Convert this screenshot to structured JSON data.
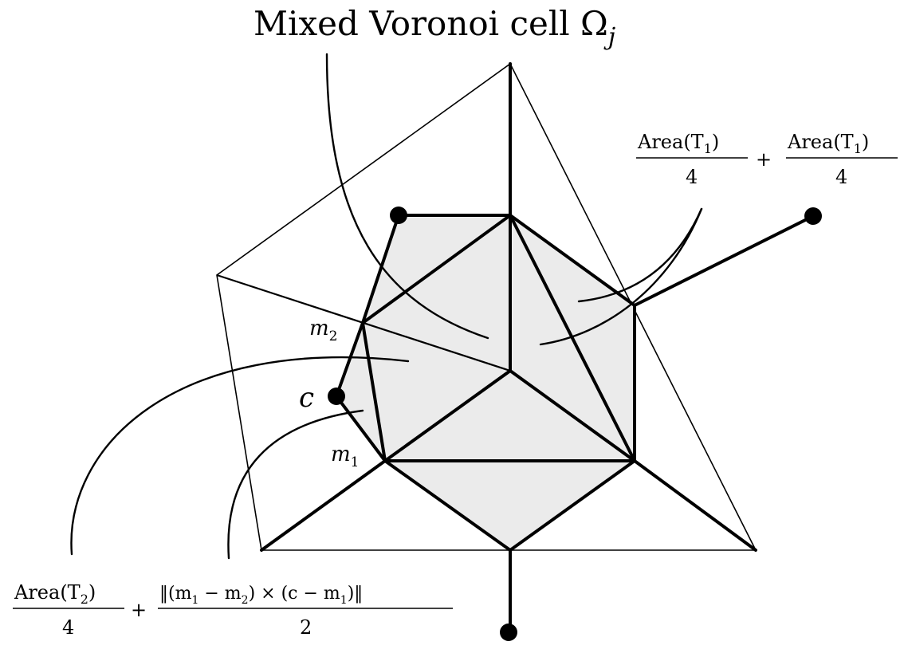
{
  "title": {
    "text": "Mixed Voronoi cell Ω",
    "sub": "j"
  },
  "points": {
    "c": "c",
    "m1": {
      "base": "m",
      "sub": "1"
    },
    "m2": {
      "base": "m",
      "sub": "2"
    }
  },
  "formula_top_right": {
    "num1": "Area(T",
    "num1_sub": "1",
    "num1_close": ")",
    "den1": "4",
    "op": "+",
    "num2": "Area(T",
    "num2_sub": "1",
    "num2_close": ")",
    "den2": "4"
  },
  "formula_bottom_left": {
    "num1": "Area(T",
    "num1_sub": "2",
    "num1_close": ")",
    "den1": "4",
    "op": "+",
    "num2_a": "‖(m",
    "num2_a_sub": "1",
    "num2_b": " − m",
    "num2_b_sub": "2",
    "num2_c": ") × (c − m",
    "num2_c_sub": "1",
    "num2_d": ")‖",
    "den2": "2"
  },
  "colors": {
    "cell_fill": "#ebebeb",
    "stroke": "#000000"
  }
}
